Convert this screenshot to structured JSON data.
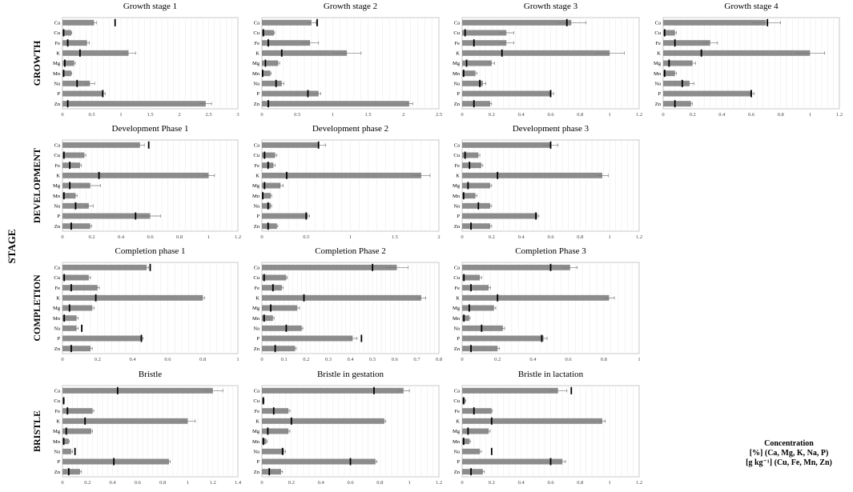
{
  "figure": {
    "stage_label": "STAGE",
    "row_labels": [
      "GROWTH",
      "DEVELOPMENT",
      "COMPLETION",
      "BRISTLE"
    ],
    "legend_lines": [
      "Concentration",
      "[%] (Ca, Mg, K, Na, P)",
      "[g kg⁻¹] (Cu, Fe, Mn, Zn)"
    ]
  },
  "chart_data": [
    {
      "type": "bar",
      "title": "Growth stage 1",
      "categories": [
        "Ca",
        "Cu",
        "Fe",
        "K",
        "Mg",
        "Mn",
        "Na",
        "P",
        "Zn"
      ],
      "values": [
        0.54,
        0.15,
        0.42,
        1.13,
        0.2,
        0.15,
        0.47,
        0.7,
        2.45
      ],
      "errors": [
        0.04,
        0.01,
        0.04,
        0.12,
        0.02,
        0.01,
        0.08,
        0.03,
        0.1
      ],
      "markers": [
        0.9,
        0.02,
        0.09,
        0.3,
        0.04,
        0.02,
        0.25,
        0.69,
        0.09
      ],
      "xlim": [
        0,
        3
      ],
      "xticks": [
        0,
        0.5,
        1,
        1.5,
        2,
        2.5,
        3
      ]
    },
    {
      "type": "bar",
      "title": "Growth stage 2",
      "categories": [
        "Ca",
        "Cu",
        "Fe",
        "K",
        "Mg",
        "Mn",
        "Na",
        "P",
        "Zn"
      ],
      "values": [
        0.7,
        0.17,
        0.68,
        1.2,
        0.23,
        0.12,
        0.28,
        0.8,
        2.08
      ],
      "errors": [
        0.06,
        0.01,
        0.12,
        0.2,
        0.02,
        0.01,
        0.03,
        0.03,
        0.05
      ],
      "markers": [
        0.78,
        0.02,
        0.09,
        0.28,
        0.05,
        0.01,
        0.2,
        0.65,
        0.09
      ],
      "xlim": [
        0,
        2.5
      ],
      "xticks": [
        0,
        0.5,
        1,
        1.5,
        2,
        2.5
      ]
    },
    {
      "type": "bar",
      "title": "Growth stage 3",
      "categories": [
        "Ca",
        "Cu",
        "Fe",
        "K",
        "Mg",
        "Mn",
        "Na",
        "P",
        "Zn"
      ],
      "values": [
        0.74,
        0.3,
        0.3,
        1.0,
        0.2,
        0.09,
        0.14,
        0.6,
        0.19
      ],
      "errors": [
        0.1,
        0.05,
        0.05,
        0.1,
        0.02,
        0.01,
        0.02,
        0.02,
        0.01
      ],
      "markers": [
        0.71,
        0.02,
        0.08,
        0.27,
        0.03,
        0.01,
        0.12,
        0.6,
        0.08
      ],
      "xlim": [
        0,
        1.2
      ],
      "xticks": [
        0,
        0.2,
        0.4,
        0.6,
        0.8,
        1,
        1.2
      ]
    },
    {
      "type": "bar",
      "title": "Growth stage 4",
      "categories": [
        "Ca",
        "Cu",
        "Fe",
        "K",
        "Mg",
        "Mn",
        "Na",
        "P",
        "Zn"
      ],
      "values": [
        0.7,
        0.08,
        0.32,
        1.0,
        0.2,
        0.08,
        0.18,
        0.6,
        0.19
      ],
      "errors": [
        0.1,
        0.01,
        0.05,
        0.1,
        0.02,
        0.01,
        0.03,
        0.02,
        0.01
      ],
      "markers": [
        0.71,
        0.01,
        0.08,
        0.26,
        0.04,
        0.01,
        0.13,
        0.6,
        0.08
      ],
      "xlim": [
        0,
        1.2
      ],
      "xticks": [
        0,
        0.2,
        0.4,
        0.6,
        0.8,
        1,
        1.2
      ]
    },
    {
      "type": "bar",
      "title": "Development Phase 1",
      "categories": [
        "Ca",
        "Cu",
        "Fe",
        "K",
        "Mg",
        "Mn",
        "Na",
        "P",
        "Zn"
      ],
      "values": [
        0.53,
        0.15,
        0.12,
        1.0,
        0.19,
        0.09,
        0.18,
        0.6,
        0.19
      ],
      "errors": [
        0.03,
        0.01,
        0.01,
        0.04,
        0.07,
        0.01,
        0.03,
        0.07,
        0.01
      ],
      "markers": [
        0.59,
        0.01,
        0.05,
        0.25,
        0.05,
        0.01,
        0.09,
        0.5,
        0.06
      ],
      "xlim": [
        0,
        1.2
      ],
      "xticks": [
        0,
        0.2,
        0.4,
        0.6,
        0.8,
        1,
        1.2
      ]
    },
    {
      "type": "bar",
      "title": "Development phase 2",
      "categories": [
        "Ca",
        "Cu",
        "Fe",
        "K",
        "Mg",
        "Mn",
        "Na",
        "P",
        "Zn"
      ],
      "values": [
        0.64,
        0.15,
        0.13,
        1.8,
        0.21,
        0.1,
        0.1,
        0.52,
        0.17
      ],
      "errors": [
        0.08,
        0.02,
        0.02,
        0.1,
        0.03,
        0.01,
        0.01,
        0.02,
        0.01
      ],
      "markers": [
        0.64,
        0.03,
        0.07,
        0.28,
        0.03,
        0.01,
        0.07,
        0.5,
        0.07
      ],
      "xlim": [
        0,
        2
      ],
      "xticks": [
        0,
        0.5,
        1,
        1.5,
        2
      ]
    },
    {
      "type": "bar",
      "title": "Development phase 3",
      "categories": [
        "Ca",
        "Cu",
        "Fe",
        "K",
        "Mg",
        "Mn",
        "Na",
        "P",
        "Zn"
      ],
      "values": [
        0.6,
        0.11,
        0.13,
        0.95,
        0.19,
        0.09,
        0.19,
        0.51,
        0.19
      ],
      "errors": [
        0.05,
        0.01,
        0.01,
        0.04,
        0.01,
        0.01,
        0.01,
        0.01,
        0.01
      ],
      "markers": [
        0.6,
        0.02,
        0.05,
        0.24,
        0.04,
        0.01,
        0.11,
        0.5,
        0.06
      ],
      "xlim": [
        0,
        1.2
      ],
      "xticks": [
        0,
        0.2,
        0.4,
        0.6,
        0.8,
        1,
        1.2
      ]
    },
    {
      "type": "bar",
      "title": "Completion phase 1",
      "categories": [
        "Ca",
        "Cu",
        "Fe",
        "K",
        "Mg",
        "Mn",
        "Na",
        "P",
        "Zn"
      ],
      "values": [
        0.48,
        0.15,
        0.2,
        0.8,
        0.17,
        0.08,
        0.08,
        0.45,
        0.16
      ],
      "errors": [
        0.01,
        0.01,
        0.01,
        0.01,
        0.01,
        0.01,
        0.01,
        0.01,
        0.01
      ],
      "markers": [
        0.5,
        0.01,
        0.05,
        0.19,
        0.04,
        0.01,
        0.11,
        0.45,
        0.05
      ],
      "xlim": [
        0,
        1
      ],
      "xticks": [
        0,
        0.2,
        0.4,
        0.6,
        0.8,
        1
      ]
    },
    {
      "type": "bar",
      "title": "Completion Phase 2",
      "categories": [
        "Ca",
        "Cu",
        "Fe",
        "K",
        "Mg",
        "Mn",
        "Na",
        "P",
        "Zn"
      ],
      "values": [
        0.61,
        0.11,
        0.09,
        0.72,
        0.16,
        0.05,
        0.18,
        0.41,
        0.15
      ],
      "errors": [
        0.05,
        0.005,
        0.005,
        0.02,
        0.01,
        0.005,
        0.005,
        0.02,
        0.005
      ],
      "markers": [
        0.5,
        0.01,
        0.05,
        0.19,
        0.04,
        0.01,
        0.11,
        0.45,
        0.06
      ],
      "xlim": [
        0,
        0.8
      ],
      "xticks": [
        0,
        0.1,
        0.2,
        0.3,
        0.4,
        0.5,
        0.6,
        0.7,
        0.8
      ]
    },
    {
      "type": "bar",
      "title": "Completion Phase 3",
      "categories": [
        "Ca",
        "Cu",
        "Fe",
        "K",
        "Mg",
        "Mn",
        "Na",
        "P",
        "Zn"
      ],
      "values": [
        0.61,
        0.1,
        0.15,
        0.83,
        0.18,
        0.04,
        0.23,
        0.46,
        0.2
      ],
      "errors": [
        0.04,
        0.01,
        0.01,
        0.03,
        0.01,
        0.005,
        0.01,
        0.02,
        0.01
      ],
      "markers": [
        0.5,
        0.01,
        0.05,
        0.2,
        0.04,
        0.01,
        0.11,
        0.45,
        0.05
      ],
      "xlim": [
        0,
        1
      ],
      "xticks": [
        0,
        0.2,
        0.4,
        0.6,
        0.8,
        1
      ]
    },
    {
      "type": "bar",
      "title": "Bristle",
      "categories": [
        "Ca",
        "Cu",
        "Fe",
        "K",
        "Mg",
        "Mn",
        "Na",
        "P",
        "Zn"
      ],
      "values": [
        1.2,
        0.01,
        0.24,
        1.0,
        0.23,
        0.05,
        0.07,
        0.85,
        0.14
      ],
      "errors": [
        0.08,
        0.005,
        0.01,
        0.06,
        0.01,
        0.005,
        0.01,
        0.01,
        0.01
      ],
      "markers": [
        0.44,
        0.01,
        0.04,
        0.18,
        0.03,
        0.01,
        0.1,
        0.41,
        0.05
      ],
      "xlim": [
        0,
        1.4
      ],
      "xticks": [
        0,
        0.2,
        0.4,
        0.6,
        0.8,
        1,
        1.2,
        1.4
      ]
    },
    {
      "type": "bar",
      "title": "Bristle in gestation",
      "categories": [
        "Ca",
        "Cu",
        "Fe",
        "K",
        "Mg",
        "Mn",
        "Na",
        "P",
        "Zn"
      ],
      "values": [
        0.96,
        0.01,
        0.18,
        0.83,
        0.18,
        0.03,
        0.15,
        0.77,
        0.13
      ],
      "errors": [
        0.04,
        0.005,
        0.01,
        0.01,
        0.01,
        0.005,
        0.01,
        0.01,
        0.01
      ],
      "markers": [
        0.76,
        0.01,
        0.08,
        0.2,
        0.04,
        0.01,
        0.14,
        0.6,
        0.05
      ],
      "xlim": [
        0,
        1.2
      ],
      "xticks": [
        0,
        0.2,
        0.4,
        0.6,
        0.8,
        1,
        1.2
      ]
    },
    {
      "type": "bar",
      "title": "Bristle in lactation",
      "categories": [
        "Ca",
        "Cu",
        "Fe",
        "K",
        "Mg",
        "Mn",
        "Na",
        "P",
        "Zn"
      ],
      "values": [
        0.65,
        0.02,
        0.2,
        0.95,
        0.18,
        0.05,
        0.12,
        0.68,
        0.14
      ],
      "errors": [
        0.06,
        0.005,
        0.005,
        0.02,
        0.01,
        0.005,
        0.01,
        0.02,
        0.01
      ],
      "markers": [
        0.74,
        0.01,
        0.08,
        0.2,
        0.04,
        0.01,
        0.2,
        0.6,
        0.06
      ],
      "xlim": [
        0,
        1.2
      ],
      "xticks": [
        0,
        0.2,
        0.4,
        0.6,
        0.8,
        1,
        1.2
      ]
    }
  ]
}
